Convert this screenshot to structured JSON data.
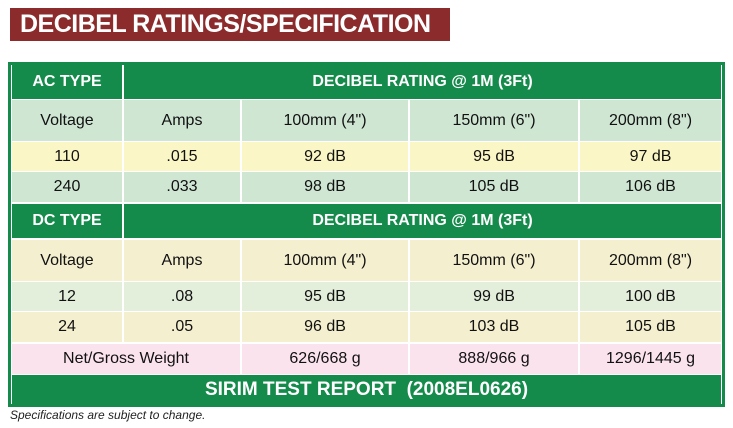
{
  "title": "DECIBEL RATINGS/SPECIFICATION",
  "sections": [
    {
      "type_label": "AC TYPE",
      "rating_label": "DECIBEL RATING @ 1M (3Ft)",
      "columns": [
        "Voltage",
        "Amps",
        "100mm (4\")",
        "150mm (6\")",
        "200mm (8\")"
      ],
      "rows": [
        [
          "110",
          ".015",
          "92 dB",
          "95 dB",
          "97 dB"
        ],
        [
          "240",
          ".033",
          "98 dB",
          "105 dB",
          "106 dB"
        ]
      ]
    },
    {
      "type_label": "DC TYPE",
      "rating_label": "DECIBEL RATING @ 1M (3Ft)",
      "columns": [
        "Voltage",
        "Amps",
        "100mm (4\")",
        "150mm (6\")",
        "200mm (8\")"
      ],
      "rows": [
        [
          "12",
          ".08",
          "95 dB",
          "99 dB",
          "100 dB"
        ],
        [
          "24",
          ".05",
          "96 dB",
          "103 dB",
          "105 dB"
        ]
      ]
    }
  ],
  "weight": {
    "label": "Net/Gross Weight",
    "values": [
      "626/668 g",
      "888/966 g",
      "1296/1445 g"
    ]
  },
  "report": "SIRIM TEST REPORT  (2008EL0626)",
  "footnote": "Specifications are subject to change."
}
